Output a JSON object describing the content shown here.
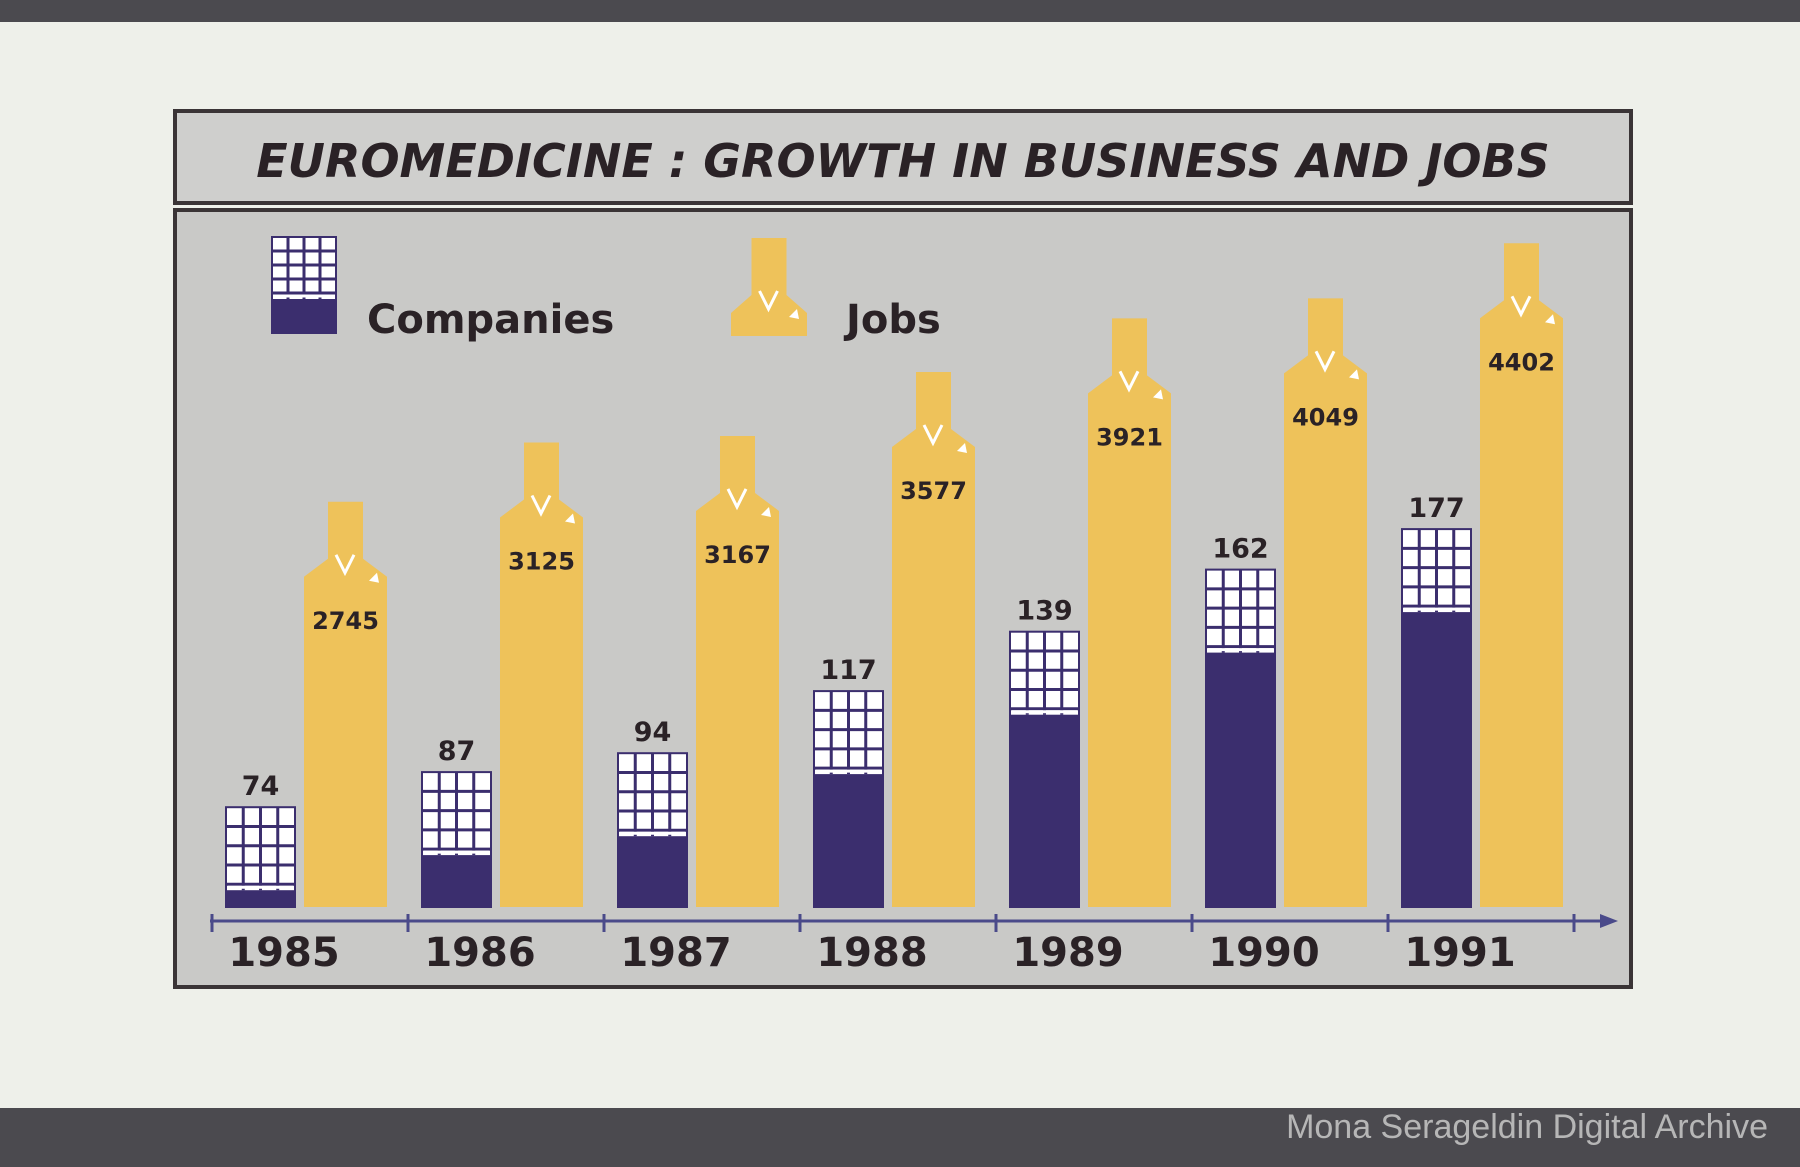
{
  "colors": {
    "companies": "#3b2e6e",
    "jobs": "#eec25a",
    "panel": "#c9c9c7",
    "paper": "#eef0ea",
    "frame": "#3a3436"
  },
  "watermark": "Mona Serageldin Digital Archive",
  "chart_data": {
    "type": "bar",
    "title": "EUROMEDICINE : GROWTH IN BUSINESS AND JOBS",
    "xlabel": "",
    "ylabel": "",
    "categories": [
      "1985",
      "1986",
      "1987",
      "1988",
      "1989",
      "1990",
      "1991"
    ],
    "legend": {
      "position": "top-left",
      "entries": [
        "Companies",
        "Jobs"
      ]
    },
    "grid": false,
    "series": [
      {
        "name": "Companies",
        "icon": "building-icon",
        "values": [
          74,
          87,
          94,
          117,
          139,
          162,
          177
        ]
      },
      {
        "name": "Jobs",
        "icon": "person-icon",
        "values": [
          2745,
          3125,
          3167,
          3577,
          3921,
          4049,
          4402
        ]
      }
    ]
  }
}
